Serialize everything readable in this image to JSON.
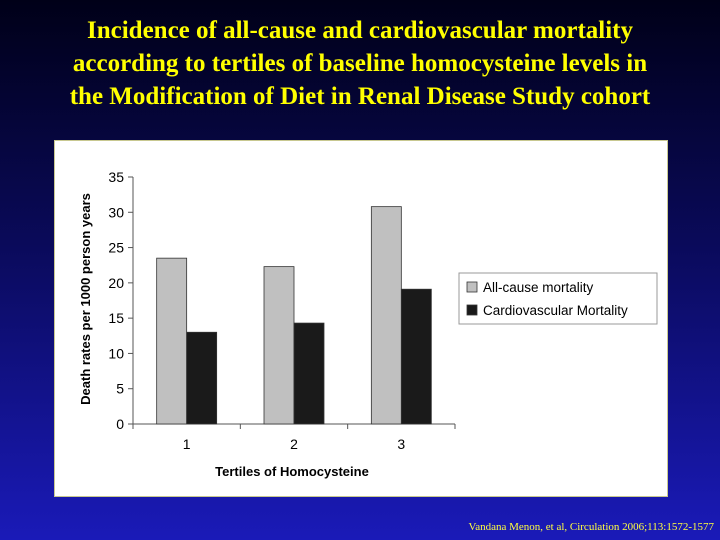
{
  "slide": {
    "title_lines": [
      "Incidence of all-cause and cardiovascular mortality",
      "according to tertiles of baseline homocysteine levels in",
      "the Modification of Diet in Renal Disease Study cohort"
    ],
    "citation": "Vandana Menon, et al, Circulation  2006;113:1572-1577"
  },
  "colors": {
    "title": "#ffff00",
    "all_cause": "#c0c0c0",
    "cardiovascular": "#1a1a1a"
  },
  "chart_data": {
    "type": "bar",
    "categories": [
      "1",
      "2",
      "3"
    ],
    "series": [
      {
        "name": "All-cause mortality",
        "values": [
          23.5,
          22.3,
          30.8
        ]
      },
      {
        "name": "Cardiovascular Mortality",
        "values": [
          13.0,
          14.3,
          19.1
        ]
      }
    ],
    "xlabel": "Tertiles of Homocysteine",
    "ylabel": "Death rates per 1000 person years",
    "ylim": [
      0,
      35
    ],
    "yticks": [
      0,
      5,
      10,
      15,
      20,
      25,
      30,
      35
    ],
    "grid": false,
    "legend_position": "right"
  }
}
